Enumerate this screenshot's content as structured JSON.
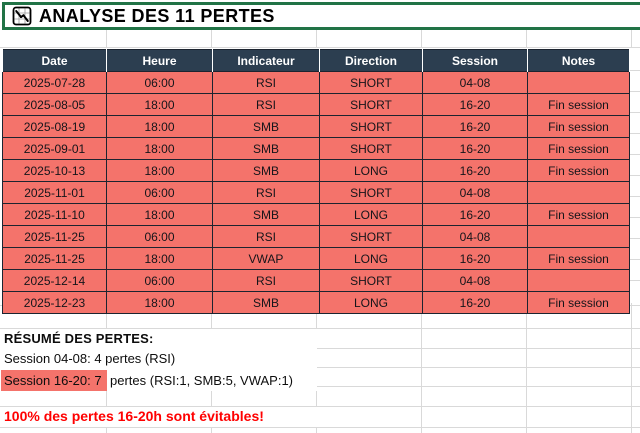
{
  "title": {
    "text": "ANALYSE DES 11 PERTES",
    "icon": "declining-chart-grid-icon"
  },
  "table": {
    "headers": [
      "Date",
      "Heure",
      "Indicateur",
      "Direction",
      "Session",
      "Notes"
    ],
    "rows": [
      [
        "2025-07-28",
        "06:00",
        "RSI",
        "SHORT",
        "04-08",
        ""
      ],
      [
        "2025-08-05",
        "18:00",
        "RSI",
        "SHORT",
        "16-20",
        "Fin session"
      ],
      [
        "2025-08-19",
        "18:00",
        "SMB",
        "SHORT",
        "16-20",
        "Fin session"
      ],
      [
        "2025-09-01",
        "18:00",
        "SMB",
        "SHORT",
        "16-20",
        "Fin session"
      ],
      [
        "2025-10-13",
        "18:00",
        "SMB",
        "LONG",
        "16-20",
        "Fin session"
      ],
      [
        "2025-11-01",
        "06:00",
        "RSI",
        "SHORT",
        "04-08",
        ""
      ],
      [
        "2025-11-10",
        "18:00",
        "SMB",
        "LONG",
        "16-20",
        "Fin session"
      ],
      [
        "2025-11-25",
        "06:00",
        "RSI",
        "SHORT",
        "04-08",
        ""
      ],
      [
        "2025-11-25",
        "18:00",
        "VWAP",
        "LONG",
        "16-20",
        "Fin session"
      ],
      [
        "2025-12-14",
        "06:00",
        "RSI",
        "SHORT",
        "04-08",
        ""
      ],
      [
        "2025-12-23",
        "18:00",
        "SMB",
        "LONG",
        "16-20",
        "Fin session"
      ]
    ]
  },
  "summary": {
    "heading": "RÉSUMÉ DES PERTES:",
    "session_04_08": "Session 04-08: 4 pertes (RSI)",
    "session_16_20_highlight": "Session 16-20: 7",
    "session_16_20_rest": "pertes (RSI:1, SMB:5, VWAP:1)"
  },
  "alert": "100% des pertes 16-20h sont évitables!",
  "colors": {
    "accent_green": "#217346",
    "header_navy": "#2C3E50",
    "loss_fill": "#F4736B",
    "alert_red": "#FF0000",
    "grid_line": "#D9D9D9",
    "cell_border": "#1C2430"
  }
}
